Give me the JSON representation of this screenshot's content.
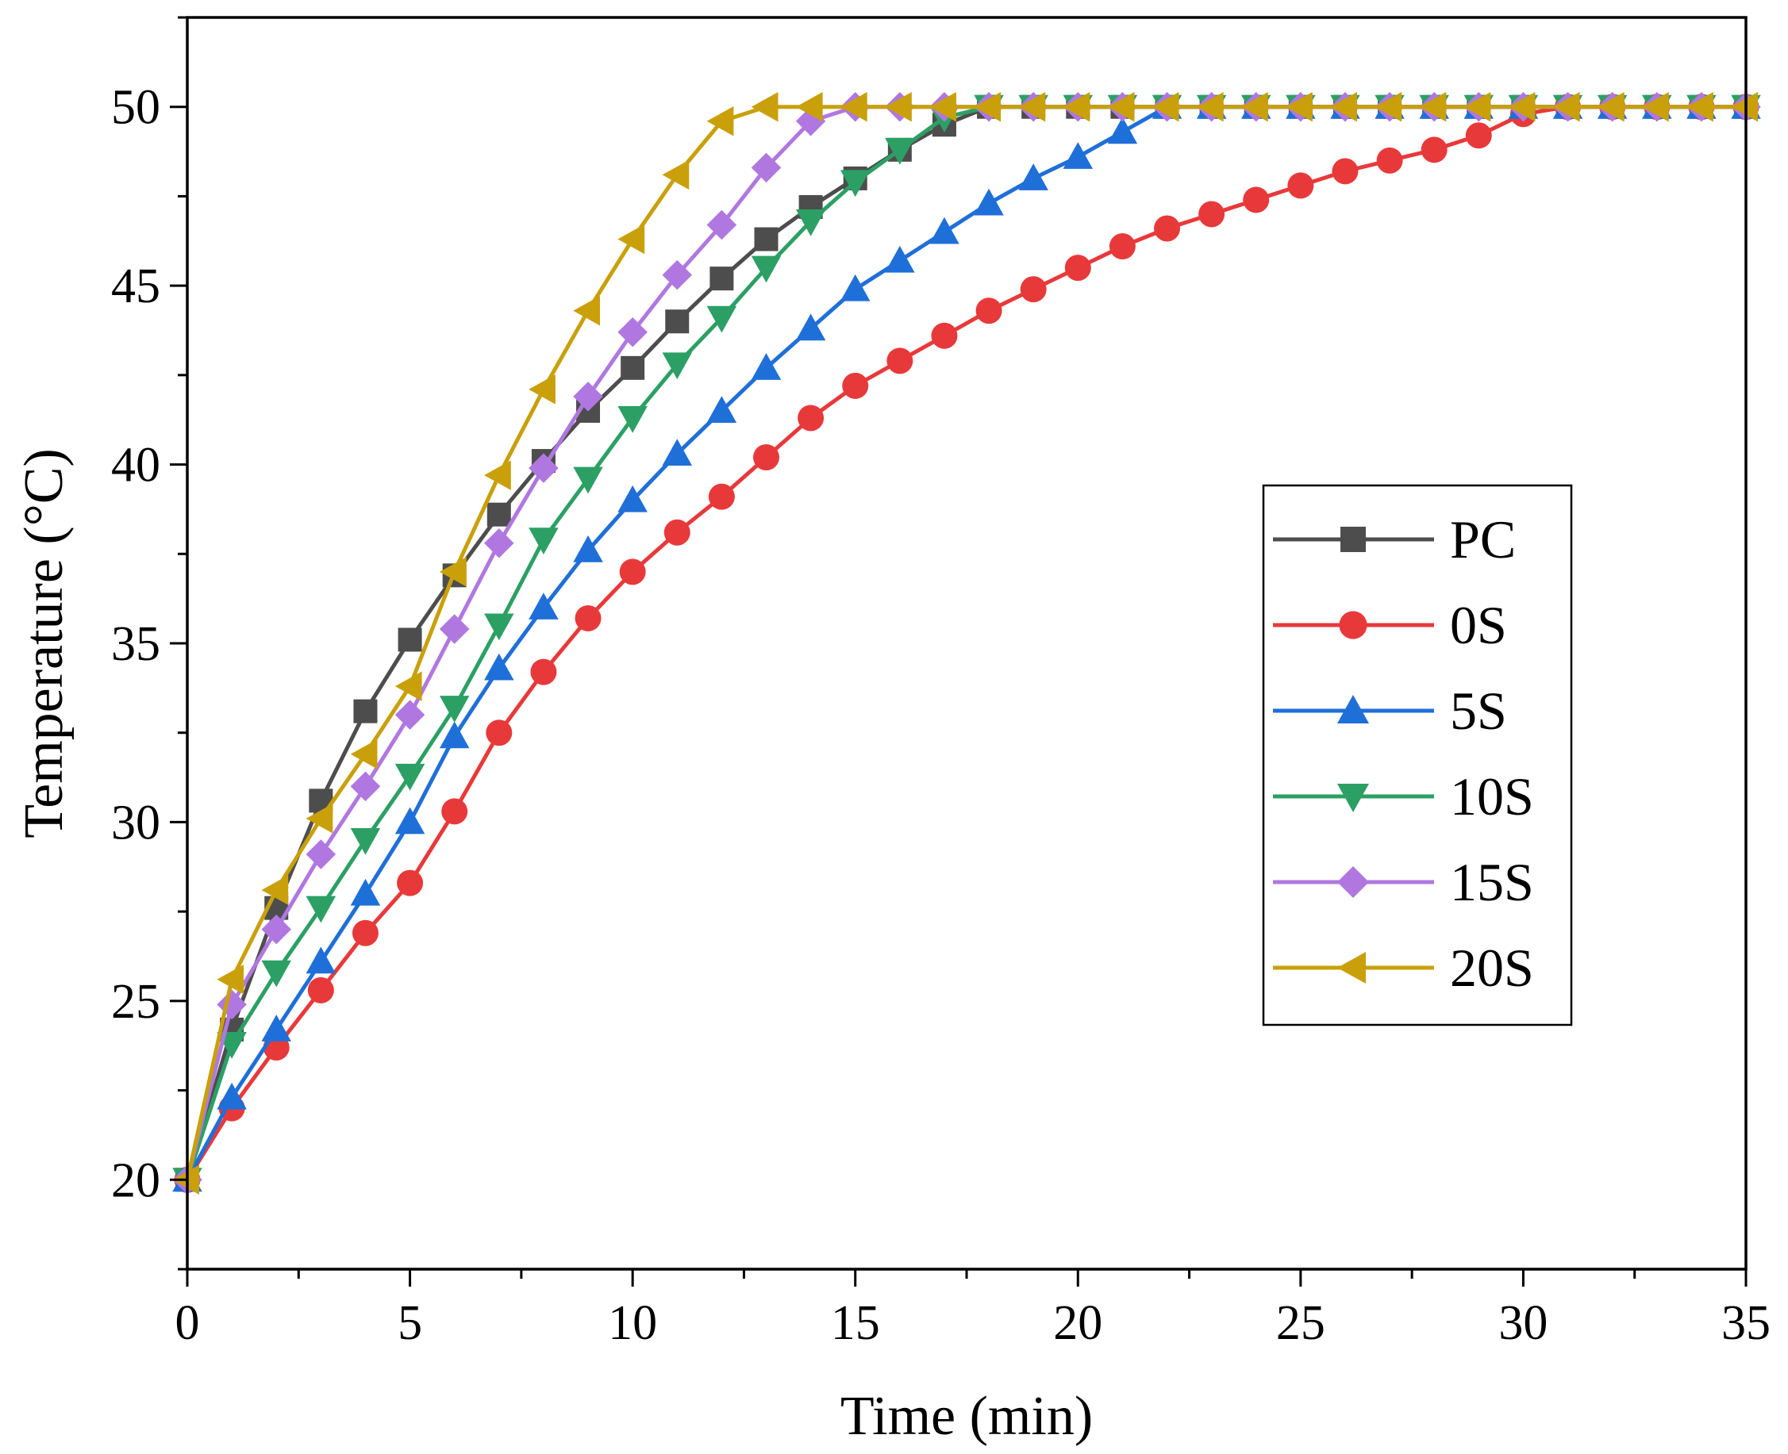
{
  "chart_data": {
    "type": "line",
    "title": "",
    "xlabel": "Time (min)",
    "ylabel": "Temperature (°C)",
    "xlim": [
      0,
      35
    ],
    "ylim": [
      17.5,
      52.5
    ],
    "xticks": [
      0,
      5,
      10,
      15,
      20,
      25,
      30,
      35
    ],
    "yticks": [
      20,
      25,
      30,
      35,
      40,
      45,
      50
    ],
    "grid": false,
    "legend_position": "center-right",
    "x": [
      0,
      1,
      2,
      3,
      4,
      5,
      6,
      7,
      8,
      9,
      10,
      11,
      12,
      13,
      14,
      15,
      16,
      17,
      18,
      19,
      20,
      21,
      22,
      23,
      24,
      25,
      26,
      27,
      28,
      29,
      30,
      31,
      32,
      33,
      34,
      35
    ],
    "series": [
      {
        "name": "PC",
        "color": "#4d4d4d",
        "marker": "square",
        "values": [
          20,
          24.2,
          27.6,
          30.6,
          33.1,
          35.1,
          36.9,
          38.6,
          40.1,
          41.5,
          42.7,
          44.0,
          45.2,
          46.3,
          47.2,
          48.0,
          48.8,
          49.5,
          50,
          50,
          50,
          50,
          50,
          50,
          50,
          50,
          50,
          50,
          50,
          50,
          50,
          50,
          50,
          50,
          50,
          50
        ]
      },
      {
        "name": "0S",
        "color": "#e8393a",
        "marker": "circle",
        "values": [
          20,
          22.0,
          23.7,
          25.3,
          26.9,
          28.3,
          30.3,
          32.5,
          34.2,
          35.7,
          37.0,
          38.1,
          39.1,
          40.2,
          41.3,
          42.2,
          42.9,
          43.6,
          44.3,
          44.9,
          45.5,
          46.1,
          46.6,
          47.0,
          47.4,
          47.8,
          48.2,
          48.5,
          48.8,
          49.2,
          49.8,
          50,
          50,
          50,
          50,
          50
        ]
      },
      {
        "name": "5S",
        "color": "#1f6fd8",
        "marker": "triangle-up",
        "values": [
          20,
          22.3,
          24.2,
          26.1,
          28.0,
          30.0,
          32.4,
          34.3,
          36.0,
          37.6,
          39.0,
          40.3,
          41.5,
          42.7,
          43.8,
          44.9,
          45.7,
          46.5,
          47.3,
          48.0,
          48.6,
          49.3,
          50,
          50,
          50,
          50,
          50,
          50,
          50,
          50,
          50,
          50,
          50,
          50,
          50,
          50
        ]
      },
      {
        "name": "10S",
        "color": "#2ca064",
        "marker": "triangle-down",
        "values": [
          20,
          23.8,
          25.8,
          27.6,
          29.5,
          31.3,
          33.2,
          35.5,
          37.9,
          39.6,
          41.3,
          42.8,
          44.1,
          45.5,
          46.8,
          47.9,
          48.8,
          49.7,
          50,
          50,
          50,
          50,
          50,
          50,
          50,
          50,
          50,
          50,
          50,
          50,
          50,
          50,
          50,
          50,
          50,
          50
        ]
      },
      {
        "name": "15S",
        "color": "#b077e0",
        "marker": "diamond",
        "values": [
          20,
          24.9,
          27.0,
          29.1,
          31.0,
          33.0,
          35.4,
          37.8,
          39.9,
          41.9,
          43.7,
          45.3,
          46.7,
          48.3,
          49.6,
          50,
          50,
          50,
          50,
          50,
          50,
          50,
          50,
          50,
          50,
          50,
          50,
          50,
          50,
          50,
          50,
          50,
          50,
          50,
          50,
          50
        ]
      },
      {
        "name": "20S",
        "color": "#c9a00a",
        "marker": "triangle-left",
        "values": [
          20,
          25.6,
          28.1,
          30.1,
          31.9,
          33.8,
          37.0,
          39.7,
          42.1,
          44.3,
          46.3,
          48.1,
          49.6,
          50,
          50,
          50,
          50,
          50,
          50,
          50,
          50,
          50,
          50,
          50,
          50,
          50,
          50,
          50,
          50,
          50,
          50,
          50,
          50,
          50,
          50,
          50
        ]
      }
    ]
  }
}
